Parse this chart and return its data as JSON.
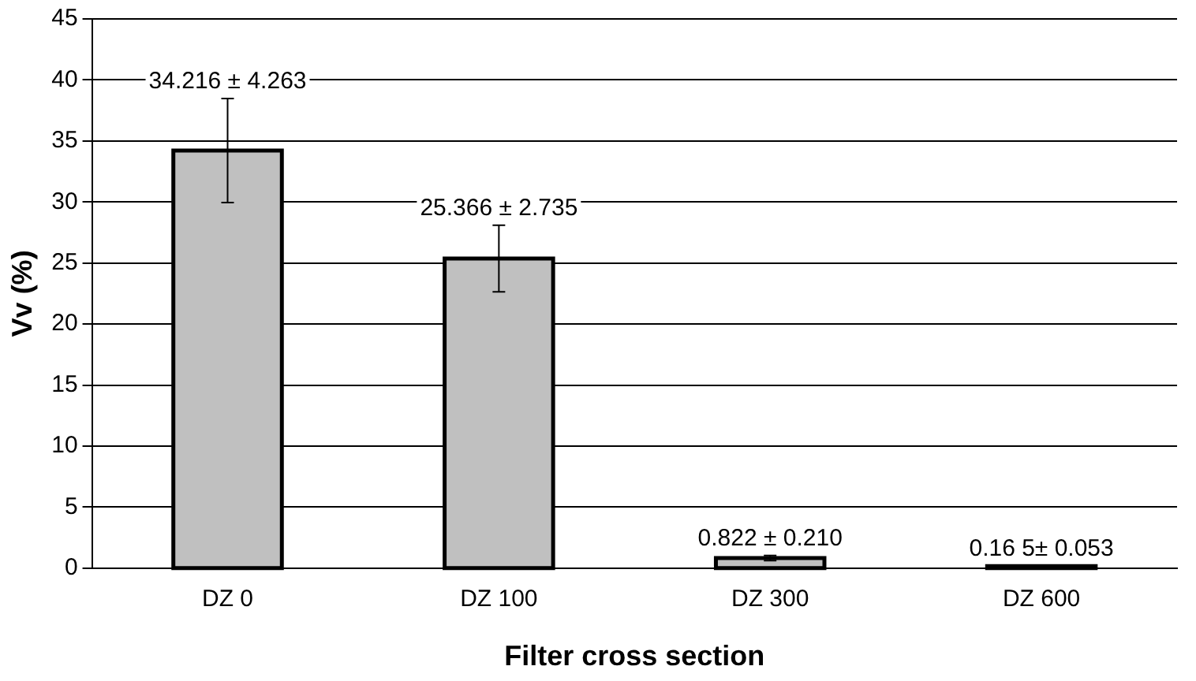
{
  "chart_data": {
    "type": "bar",
    "xlabel": "Filter cross section",
    "ylabel": "Vv (%)",
    "categories": [
      "DZ 0",
      "DZ 100",
      "DZ 300",
      "DZ 600"
    ],
    "values": [
      34.216,
      25.366,
      0.822,
      0.165
    ],
    "errors": [
      4.263,
      2.735,
      0.21,
      0.053
    ],
    "value_labels": [
      "34.216 ± 4.263",
      "25.366 ± 2.735",
      "0.822 ± 0.210",
      "0.16 5± 0.053"
    ],
    "color": "#c0c0c0",
    "ylim": [
      0,
      45
    ],
    "yticks": [
      0,
      5,
      10,
      15,
      20,
      25,
      30,
      35,
      40,
      45
    ],
    "grid": "y",
    "legend": false
  }
}
